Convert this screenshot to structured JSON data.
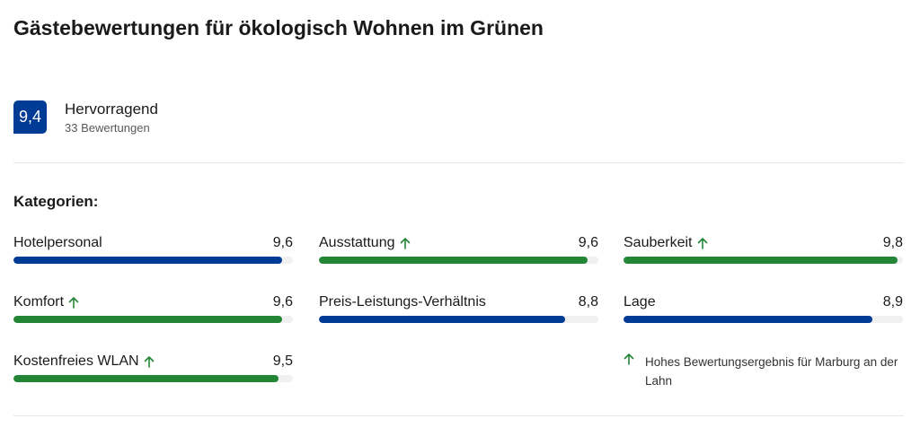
{
  "title": "Gästebewertungen für ökologisch Wohnen im Grünen",
  "summary": {
    "score": "9,4",
    "rating_word": "Hervorragend",
    "review_count": "33 Bewertungen"
  },
  "categories_heading": "Kategorien:",
  "colors": {
    "brand_blue": "#003b95",
    "highlight_green": "#238636",
    "track_gray": "#f0f0f0"
  },
  "categories": [
    {
      "label": "Hotelpersonal",
      "value": "9,6",
      "score": 9.6,
      "highlight": false
    },
    {
      "label": "Ausstattung",
      "value": "9,6",
      "score": 9.6,
      "highlight": true
    },
    {
      "label": "Sauberkeit",
      "value": "9,8",
      "score": 9.8,
      "highlight": true
    },
    {
      "label": "Komfort",
      "value": "9,6",
      "score": 9.6,
      "highlight": true
    },
    {
      "label": "Preis-Leistungs-Verhältnis",
      "value": "8,8",
      "score": 8.8,
      "highlight": false
    },
    {
      "label": "Lage",
      "value": "8,9",
      "score": 8.9,
      "highlight": false
    },
    {
      "label": "Kostenfreies WLAN",
      "value": "9,5",
      "score": 9.5,
      "highlight": true
    }
  ],
  "scale_max": 10,
  "note": {
    "icon": "arrow-up-icon",
    "text": "Hohes Bewertungsergebnis für Marburg an der Lahn"
  }
}
